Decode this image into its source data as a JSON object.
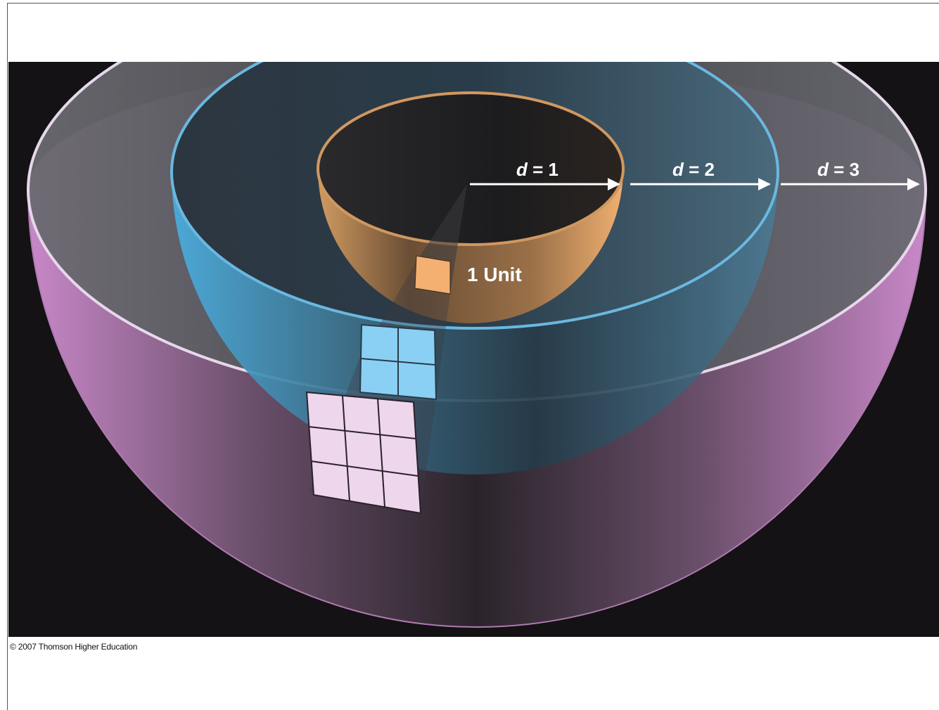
{
  "diagram": {
    "labels": {
      "d1": {
        "var": "d",
        "eq": " = 1"
      },
      "d2": {
        "var": "d",
        "eq": " = 2"
      },
      "d3": {
        "var": "d",
        "eq": " = 3"
      },
      "unit": "1 Unit"
    },
    "colors": {
      "background": "#141214",
      "inner_shell": "#f0b070",
      "middle_shell": "#5ab8e8",
      "outer_shell": "#c880c0",
      "arrow": "#ffffff"
    },
    "patches": [
      {
        "shell": "inner",
        "rows": 1,
        "cols": 1
      },
      {
        "shell": "middle",
        "rows": 2,
        "cols": 2
      },
      {
        "shell": "outer",
        "rows": 3,
        "cols": 3
      }
    ]
  },
  "footer": {
    "copyright": "© 2007 Thomson Higher Education"
  }
}
